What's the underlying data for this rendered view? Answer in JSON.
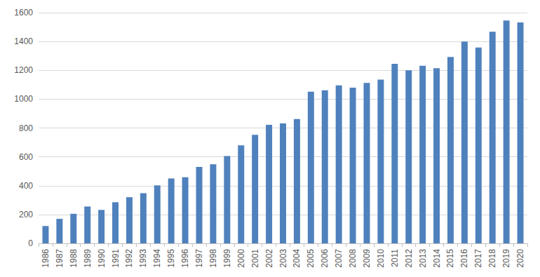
{
  "chart_data": {
    "type": "bar",
    "categories": [
      "1986",
      "1987",
      "1988",
      "1989",
      "1990",
      "1991",
      "1992",
      "1993",
      "1994",
      "1995",
      "1996",
      "1997",
      "1998",
      "1999",
      "2000",
      "2001",
      "2002",
      "2003",
      "2004",
      "2005",
      "2006",
      "2007",
      "2008",
      "2009",
      "2010",
      "2011",
      "2012",
      "2013",
      "2014",
      "2015",
      "2016",
      "2017",
      "2018",
      "2019",
      "2020"
    ],
    "values": [
      120,
      170,
      205,
      255,
      232,
      285,
      320,
      348,
      402,
      450,
      458,
      530,
      548,
      605,
      680,
      752,
      822,
      832,
      862,
      1052,
      1062,
      1095,
      1080,
      1112,
      1135,
      1245,
      1200,
      1232,
      1215,
      1292,
      1400,
      1358,
      1468,
      1545,
      1532
    ],
    "color": "#4f81bd",
    "ylim": [
      0,
      1600
    ],
    "yticks": [
      0,
      200,
      400,
      600,
      800,
      1000,
      1200,
      1400,
      1600
    ],
    "grid": true
  }
}
